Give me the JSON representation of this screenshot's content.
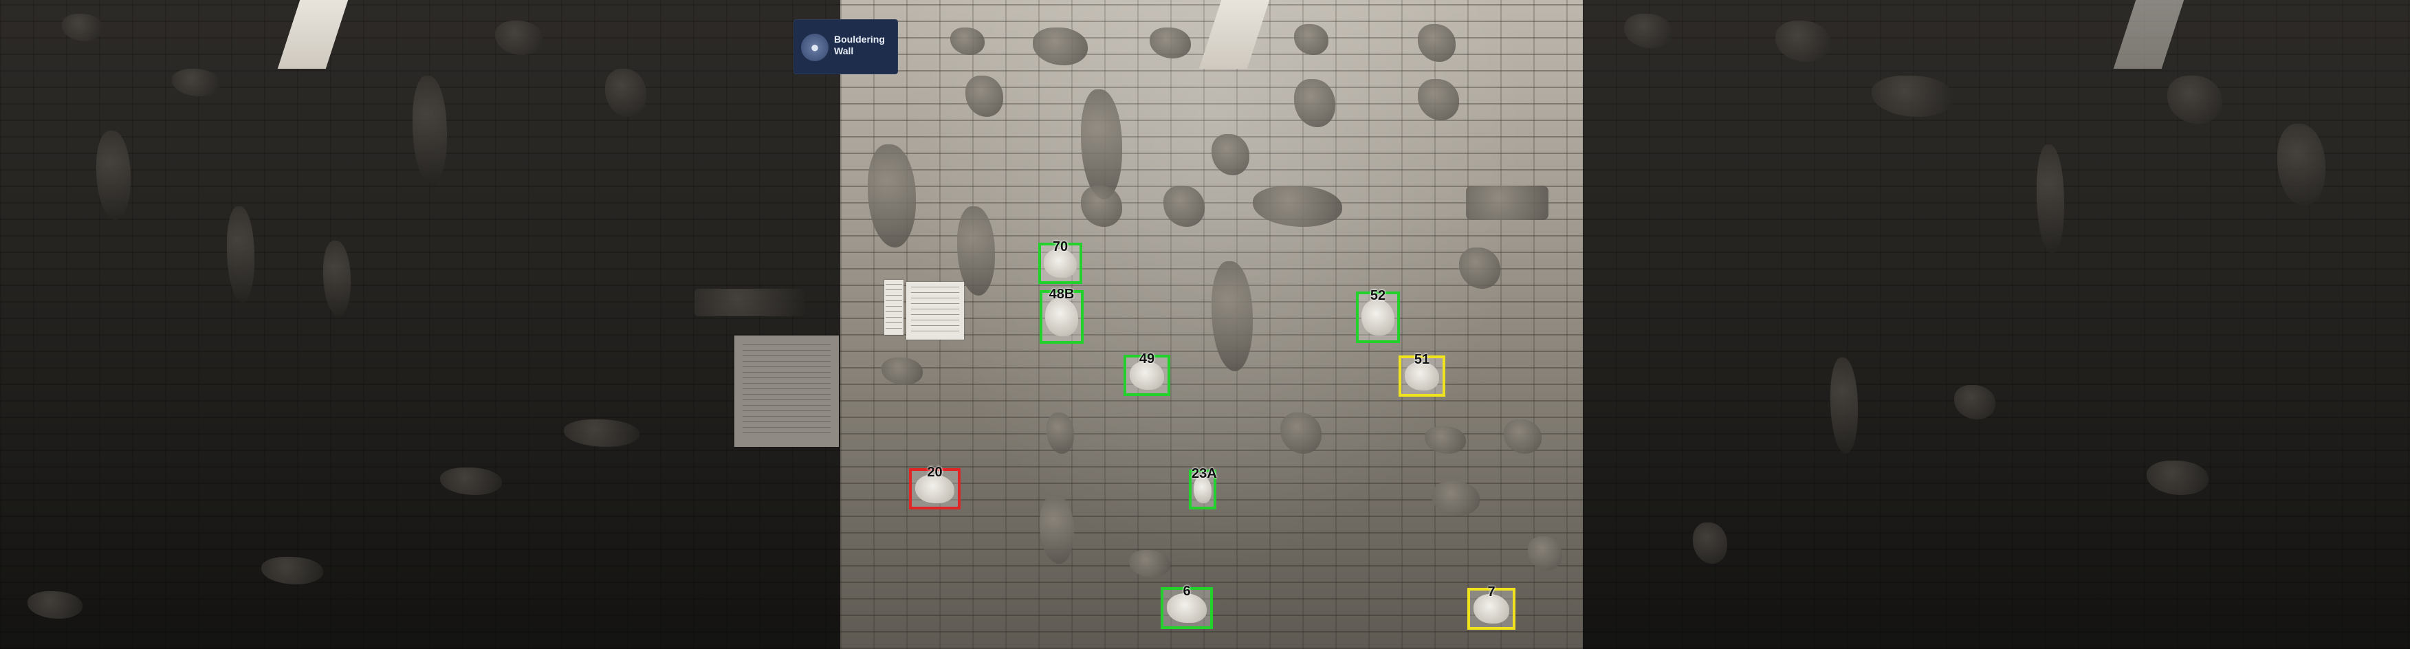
{
  "sign": {
    "logo_icon": "climber-logo-icon",
    "text": "Bouldering\nWall"
  },
  "annotations": [
    {
      "id": "70",
      "status": "green"
    },
    {
      "id": "48B",
      "status": "green"
    },
    {
      "id": "52",
      "status": "green"
    },
    {
      "id": "49",
      "status": "green"
    },
    {
      "id": "51",
      "status": "yellow"
    },
    {
      "id": "20",
      "status": "red"
    },
    {
      "id": "23A",
      "status": "green"
    },
    {
      "id": "6",
      "status": "green"
    },
    {
      "id": "7",
      "status": "yellow"
    }
  ],
  "colors": {
    "green": "#22d12b",
    "yellow": "#f0e21c",
    "red": "#e12424"
  }
}
